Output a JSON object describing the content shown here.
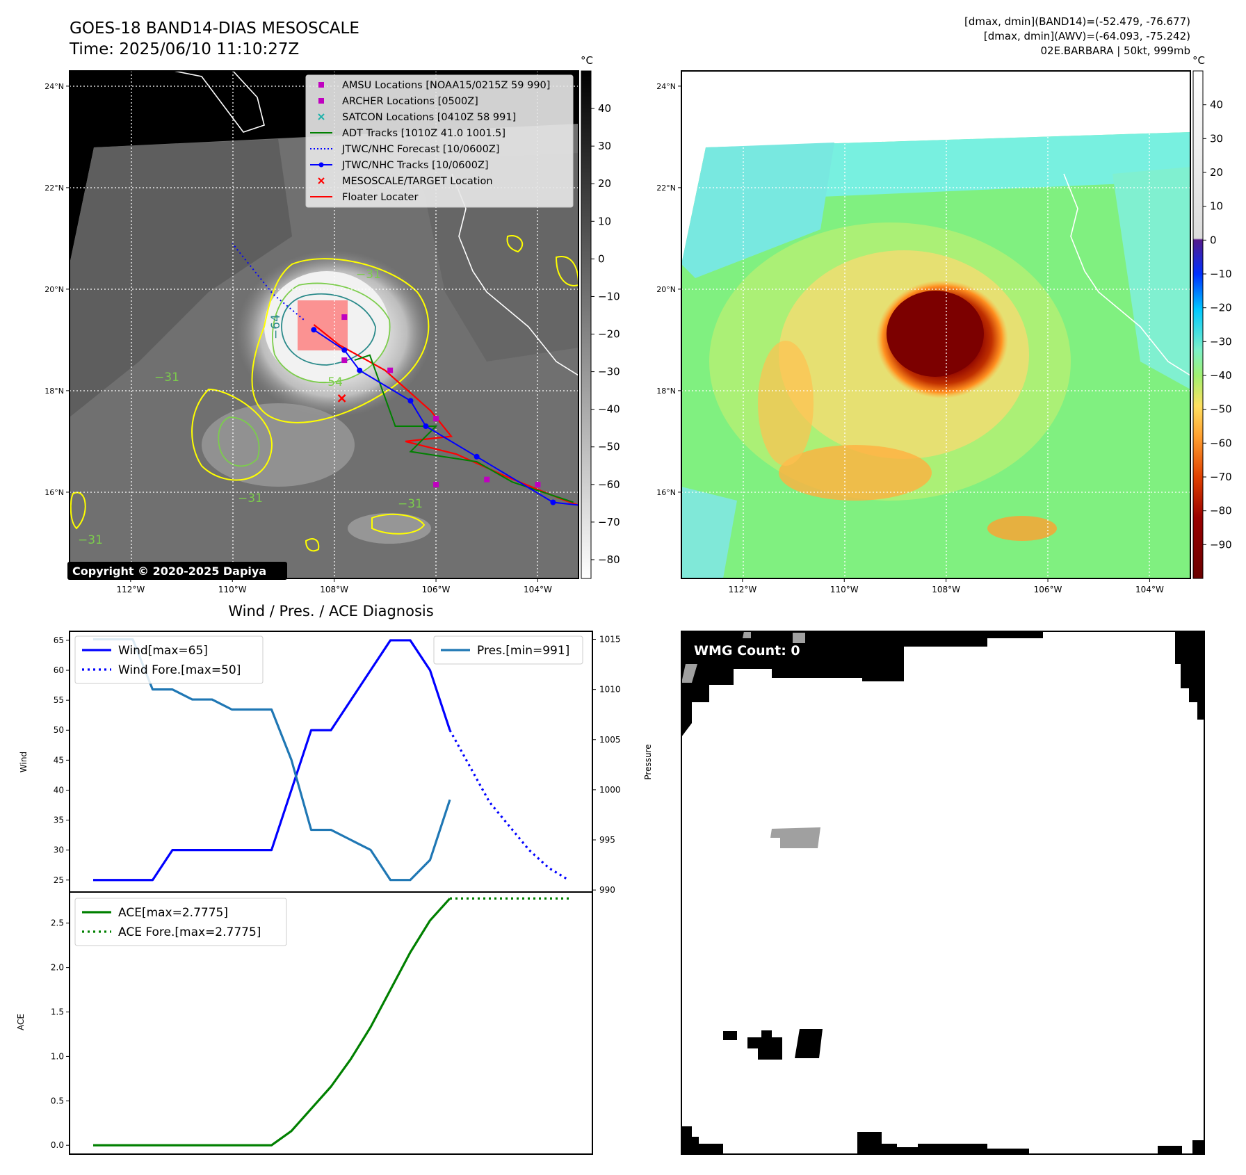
{
  "header": {
    "title_line1": "GOES-18 BAND14-DIAS MESOSCALE",
    "title_line2": "Time: 2025/06/10 11:10:27Z",
    "stats_line1": "[dmax, dmin](BAND14)=(-52.479, -76.677)",
    "stats_line2": "[dmax, dmin](AWV)=(-64.093, -75.242)",
    "stats_line3": "02E.BARBARA | 50kt, 999mb"
  },
  "copyright": "Copyright © 2020-2025 Dapiya",
  "chart_data": [
    {
      "type": "map-image",
      "name": "ir-band14",
      "lon_ticks": [
        "112°W",
        "110°W",
        "108°W",
        "106°W",
        "104°W"
      ],
      "lat_ticks": [
        "24°N",
        "22°N",
        "20°N",
        "18°N",
        "16°N"
      ],
      "colorbar": {
        "unit": "°C",
        "ticks": [
          40,
          30,
          20,
          10,
          0,
          -10,
          -20,
          -30,
          -40,
          -50,
          -60,
          -70,
          -80
        ],
        "range": [
          50,
          -85
        ]
      },
      "contour_labels": [
        "-31",
        "-54",
        "-64",
        "-31",
        "-31",
        "-31",
        "-31"
      ],
      "legend": [
        {
          "label": "AMSU Locations [NOAA15/0215Z 59 990]",
          "marker": "square",
          "color": "#c000c0"
        },
        {
          "label": "ARCHER Locations [0500Z]",
          "marker": "square",
          "color": "#c000c0"
        },
        {
          "label": "SATCON Locations [0410Z 58 991]",
          "marker": "x",
          "color": "#20b2aa"
        },
        {
          "label": "ADT Tracks [1010Z 41.0 1001.5]",
          "marker": "line",
          "color": "#008000"
        },
        {
          "label": "JTWC/NHC Forecast [10/0600Z]",
          "marker": "dotted",
          "color": "#0000ff"
        },
        {
          "label": "JTWC/NHC Tracks [10/0600Z]",
          "marker": "line-dot",
          "color": "#0000ff"
        },
        {
          "label": "MESOSCALE/TARGET Location",
          "marker": "x",
          "color": "#ff0000"
        },
        {
          "label": "Floater Locater",
          "marker": "line",
          "color": "#ff0000"
        }
      ],
      "jtwc_track": [
        [
          -102.8,
          15.7
        ],
        [
          -103.7,
          15.8
        ],
        [
          -105.2,
          16.7
        ],
        [
          -106.2,
          17.3
        ],
        [
          -106.5,
          17.8
        ],
        [
          -107.5,
          18.4
        ],
        [
          -107.8,
          18.8
        ],
        [
          -108.4,
          19.2
        ]
      ],
      "jtwc_forecast": [
        [
          -108.6,
          19.4
        ],
        [
          -109.2,
          19.9
        ],
        [
          -110.0,
          20.9
        ]
      ],
      "amsu_points": [
        [
          -107.8,
          19.45
        ],
        [
          -107.8,
          18.6
        ],
        [
          -106.0,
          17.45
        ],
        [
          -106.0,
          16.15
        ],
        [
          -105.0,
          16.25
        ],
        [
          -104.0,
          16.15
        ],
        [
          -106.9,
          18.4
        ]
      ],
      "target_point": [
        -107.85,
        17.85
      ]
    },
    {
      "type": "map-image",
      "name": "awv",
      "lon_ticks": [
        "112°W",
        "110°W",
        "108°W",
        "106°W",
        "104°W"
      ],
      "lat_ticks": [
        "24°N",
        "22°N",
        "20°N",
        "18°N",
        "16°N"
      ],
      "colorbar": {
        "unit": "°C",
        "ticks": [
          40,
          30,
          20,
          10,
          0,
          -10,
          -20,
          -30,
          -40,
          -50,
          -60,
          -70,
          -80,
          -90
        ],
        "range": [
          50,
          -100
        ]
      }
    },
    {
      "type": "line",
      "title": "Wind / Pres. / ACE Diagnosis",
      "ylabel_left": "Wind",
      "ylabel_right": "Pressure",
      "ylim_left": [
        23,
        66.5
      ],
      "ylim_right": [
        989.8,
        1015.8
      ],
      "yticks_left": [
        25,
        30,
        35,
        40,
        45,
        50,
        55,
        60,
        65
      ],
      "yticks_right": [
        990,
        995,
        1000,
        1005,
        1010,
        1015
      ],
      "x": [
        0,
        1,
        2,
        3,
        4,
        5,
        6,
        7,
        8,
        9,
        10,
        11,
        12,
        13,
        14,
        15,
        16,
        17,
        18,
        19,
        20,
        21,
        22,
        23,
        24
      ],
      "series": [
        {
          "name": "Wind[max=65]",
          "axis": "left",
          "color": "#0000ff",
          "style": "solid",
          "values": [
            25,
            25,
            25,
            25,
            30,
            30,
            30,
            30,
            30,
            30,
            40,
            50,
            50,
            55,
            60,
            65,
            65,
            60,
            50,
            null,
            null,
            null,
            null,
            null,
            null
          ]
        },
        {
          "name": "Wind Fore.[max=50]",
          "axis": "left",
          "color": "#0000ff",
          "style": "dotted",
          "values": [
            null,
            null,
            null,
            null,
            null,
            null,
            null,
            null,
            null,
            null,
            null,
            null,
            null,
            null,
            null,
            null,
            null,
            null,
            50,
            44,
            38,
            34,
            30,
            27,
            25
          ]
        },
        {
          "name": "Pres.[min=991]",
          "axis": "right",
          "color": "#1f77b4",
          "style": "solid",
          "values": [
            1015,
            1015,
            1015,
            1010,
            1010,
            1009,
            1009,
            1008,
            1008,
            1008,
            1003,
            996,
            996,
            995,
            994,
            991,
            991,
            993,
            999,
            null,
            null,
            null,
            null,
            null,
            null
          ]
        }
      ]
    },
    {
      "type": "line",
      "ylabel": "ACE",
      "ylim": [
        -0.1,
        2.85
      ],
      "yticks": [
        0.0,
        0.5,
        1.0,
        1.5,
        2.0,
        2.5
      ],
      "x": [
        0,
        1,
        2,
        3,
        4,
        5,
        6,
        7,
        8,
        9,
        10,
        11,
        12,
        13,
        14,
        15,
        16,
        17,
        18,
        19,
        20,
        21,
        22,
        23,
        24
      ],
      "series": [
        {
          "name": "ACE[max=2.7775]",
          "color": "#008000",
          "style": "solid",
          "values": [
            0,
            0,
            0,
            0,
            0,
            0,
            0,
            0,
            0,
            0,
            0.16,
            0.41,
            0.66,
            0.97,
            1.33,
            1.75,
            2.17,
            2.53,
            2.7775,
            null,
            null,
            null,
            null,
            null,
            null
          ]
        },
        {
          "name": "ACE Fore.[max=2.7775]",
          "color": "#008000",
          "style": "dotted",
          "values": [
            null,
            null,
            null,
            null,
            null,
            null,
            null,
            null,
            null,
            null,
            null,
            null,
            null,
            null,
            null,
            null,
            null,
            null,
            2.7775,
            2.7775,
            2.7775,
            2.7775,
            2.7775,
            2.7775,
            2.7775
          ]
        }
      ]
    },
    {
      "type": "mask",
      "label": "WMG Count: 0"
    }
  ]
}
